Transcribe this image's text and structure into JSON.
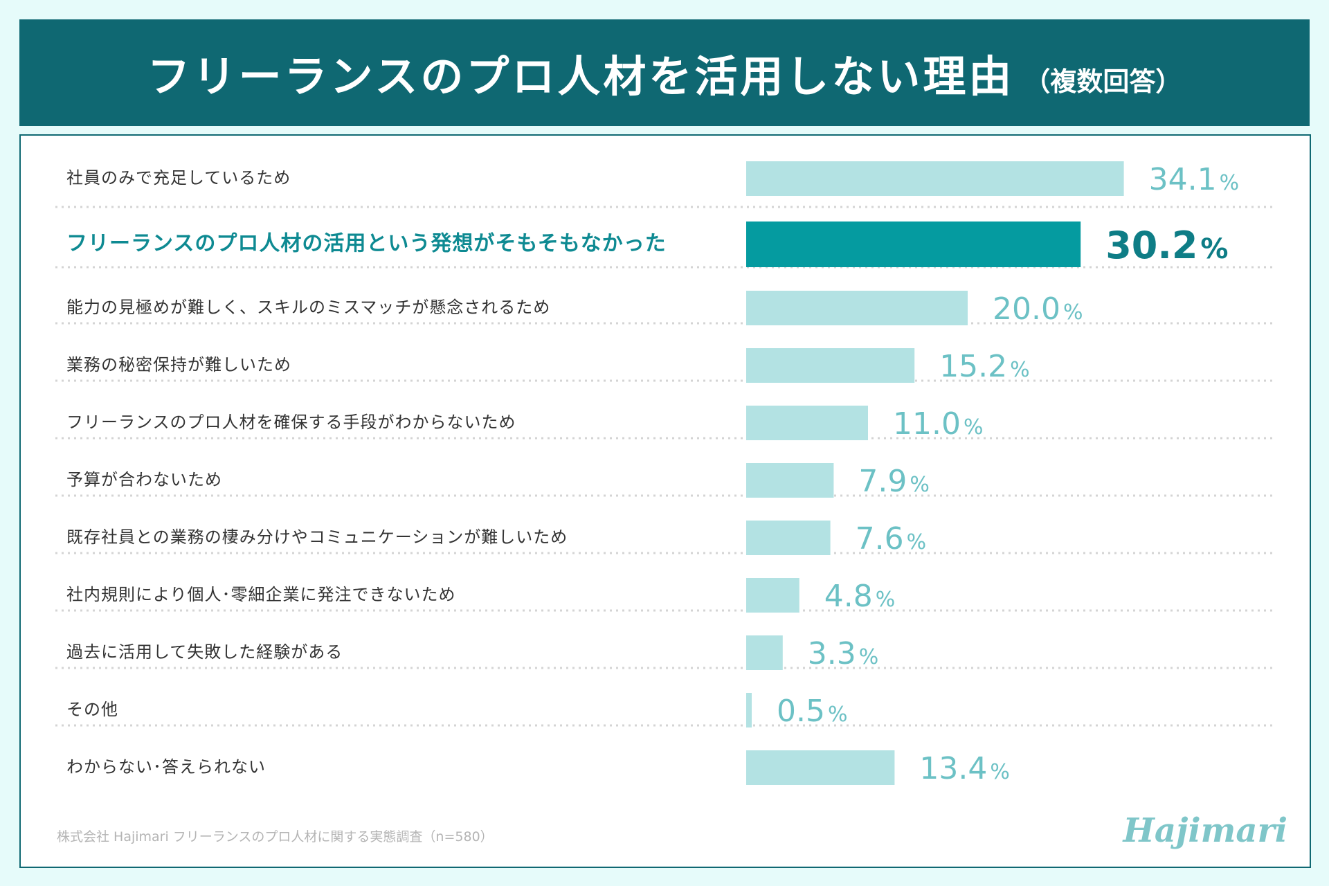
{
  "header": {
    "title": "フリーランスのプロ人材を活用しない理由",
    "subtitle": "（複数回答）"
  },
  "chart_data": {
    "type": "bar",
    "orientation": "horizontal",
    "title": "フリーランスのプロ人材を活用しない理由（複数回答）",
    "xlim": [
      0,
      100
    ],
    "unit": "%",
    "highlight_index": 1,
    "colors": {
      "bar": "#b3e2e3",
      "bar_highlight": "#059ba0",
      "value": "#6cc1c5",
      "value_highlight": "#0e7d86",
      "label": "#333333",
      "label_highlight": "#0e8a92"
    },
    "categories": [
      "社員のみで充足しているため",
      "フリーランスのプロ人材の活用という発想がそもそもなかった",
      "能力の見極めが難しく、スキルのミスマッチが懸念されるため",
      "業務の秘密保持が難しいため",
      "フリーランスのプロ人材を確保する手段がわからないため",
      "予算が合わないため",
      "既存社員との業務の棲み分けやコミュニケーションが難しいため",
      "社内規則により個人･零細企業に発注できないため",
      "過去に活用して失敗した経験がある",
      "その他",
      "わからない･答えられない"
    ],
    "values": [
      34.1,
      30.2,
      20.0,
      15.2,
      11.0,
      7.9,
      7.6,
      4.8,
      3.3,
      0.5,
      13.4
    ],
    "value_labels": [
      "34.1",
      "30.2",
      "20.0",
      "15.2",
      "11.0",
      "7.9",
      "7.6",
      "4.8",
      "3.3",
      "0.5",
      "13.4"
    ]
  },
  "footer": {
    "source": "株式会社 Hajimari フリーランスのプロ人材に関する実態調査（n=580）",
    "logo": "Hajimari"
  }
}
